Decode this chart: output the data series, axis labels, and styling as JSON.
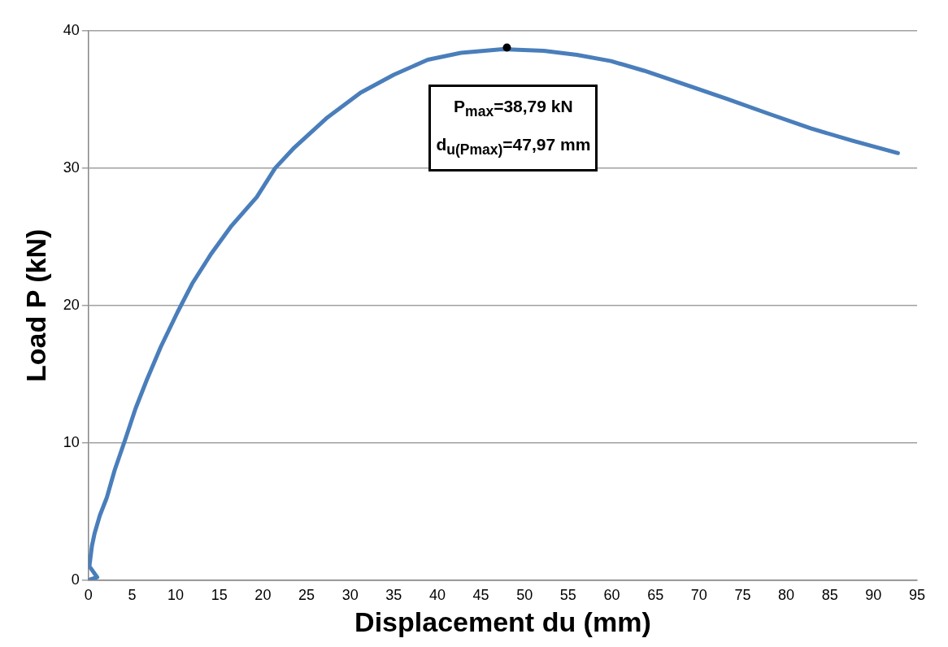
{
  "chart_data": {
    "type": "line",
    "xlabel": "Displacement du (mm)",
    "ylabel": "Load P (kN)",
    "series": [
      {
        "color": "#4a7ebb",
        "x": [
          0,
          1.0,
          0.1,
          0.4,
          0.7,
          1.3,
          2.1,
          3.0,
          4.3,
          5.4,
          6.7,
          8.3,
          10.2,
          11.9,
          14.0,
          16.4,
          19.3,
          21.4,
          23.6,
          27.4,
          31.2,
          35.0,
          38.9,
          42.7,
          47.5,
          52.2,
          56.0,
          59.9,
          63.7,
          68.5,
          73.2,
          78.0,
          82.8,
          87.6,
          92.8
        ],
        "values": [
          0,
          0.2,
          1.0,
          2.5,
          3.4,
          4.7,
          6.0,
          8.0,
          10.4,
          12.5,
          14.6,
          17.0,
          19.5,
          21.6,
          23.7,
          25.8,
          27.9,
          30.0,
          31.5,
          33.7,
          35.5,
          36.8,
          37.9,
          38.4,
          38.67,
          38.55,
          38.25,
          37.8,
          37.1,
          36.07,
          35.05,
          33.96,
          32.9,
          32.0,
          31.1
        ]
      }
    ],
    "xlim": [
      0,
      95
    ],
    "xticks": [
      0,
      5,
      10,
      15,
      20,
      25,
      30,
      35,
      40,
      45,
      50,
      55,
      60,
      65,
      70,
      75,
      80,
      85,
      90,
      95
    ],
    "ylim": [
      0,
      40
    ],
    "yticks": [
      0,
      10,
      20,
      30,
      40
    ],
    "grid": "y",
    "legend": false,
    "marker": "none",
    "line_style": "solid",
    "annotations": [
      {
        "text": "P$_{max}$=38,79 kN",
        "x": 47.97,
        "y": 38.79
      },
      "d$_{u(Pmax)}$=47,97 mm"
    ]
  }
}
